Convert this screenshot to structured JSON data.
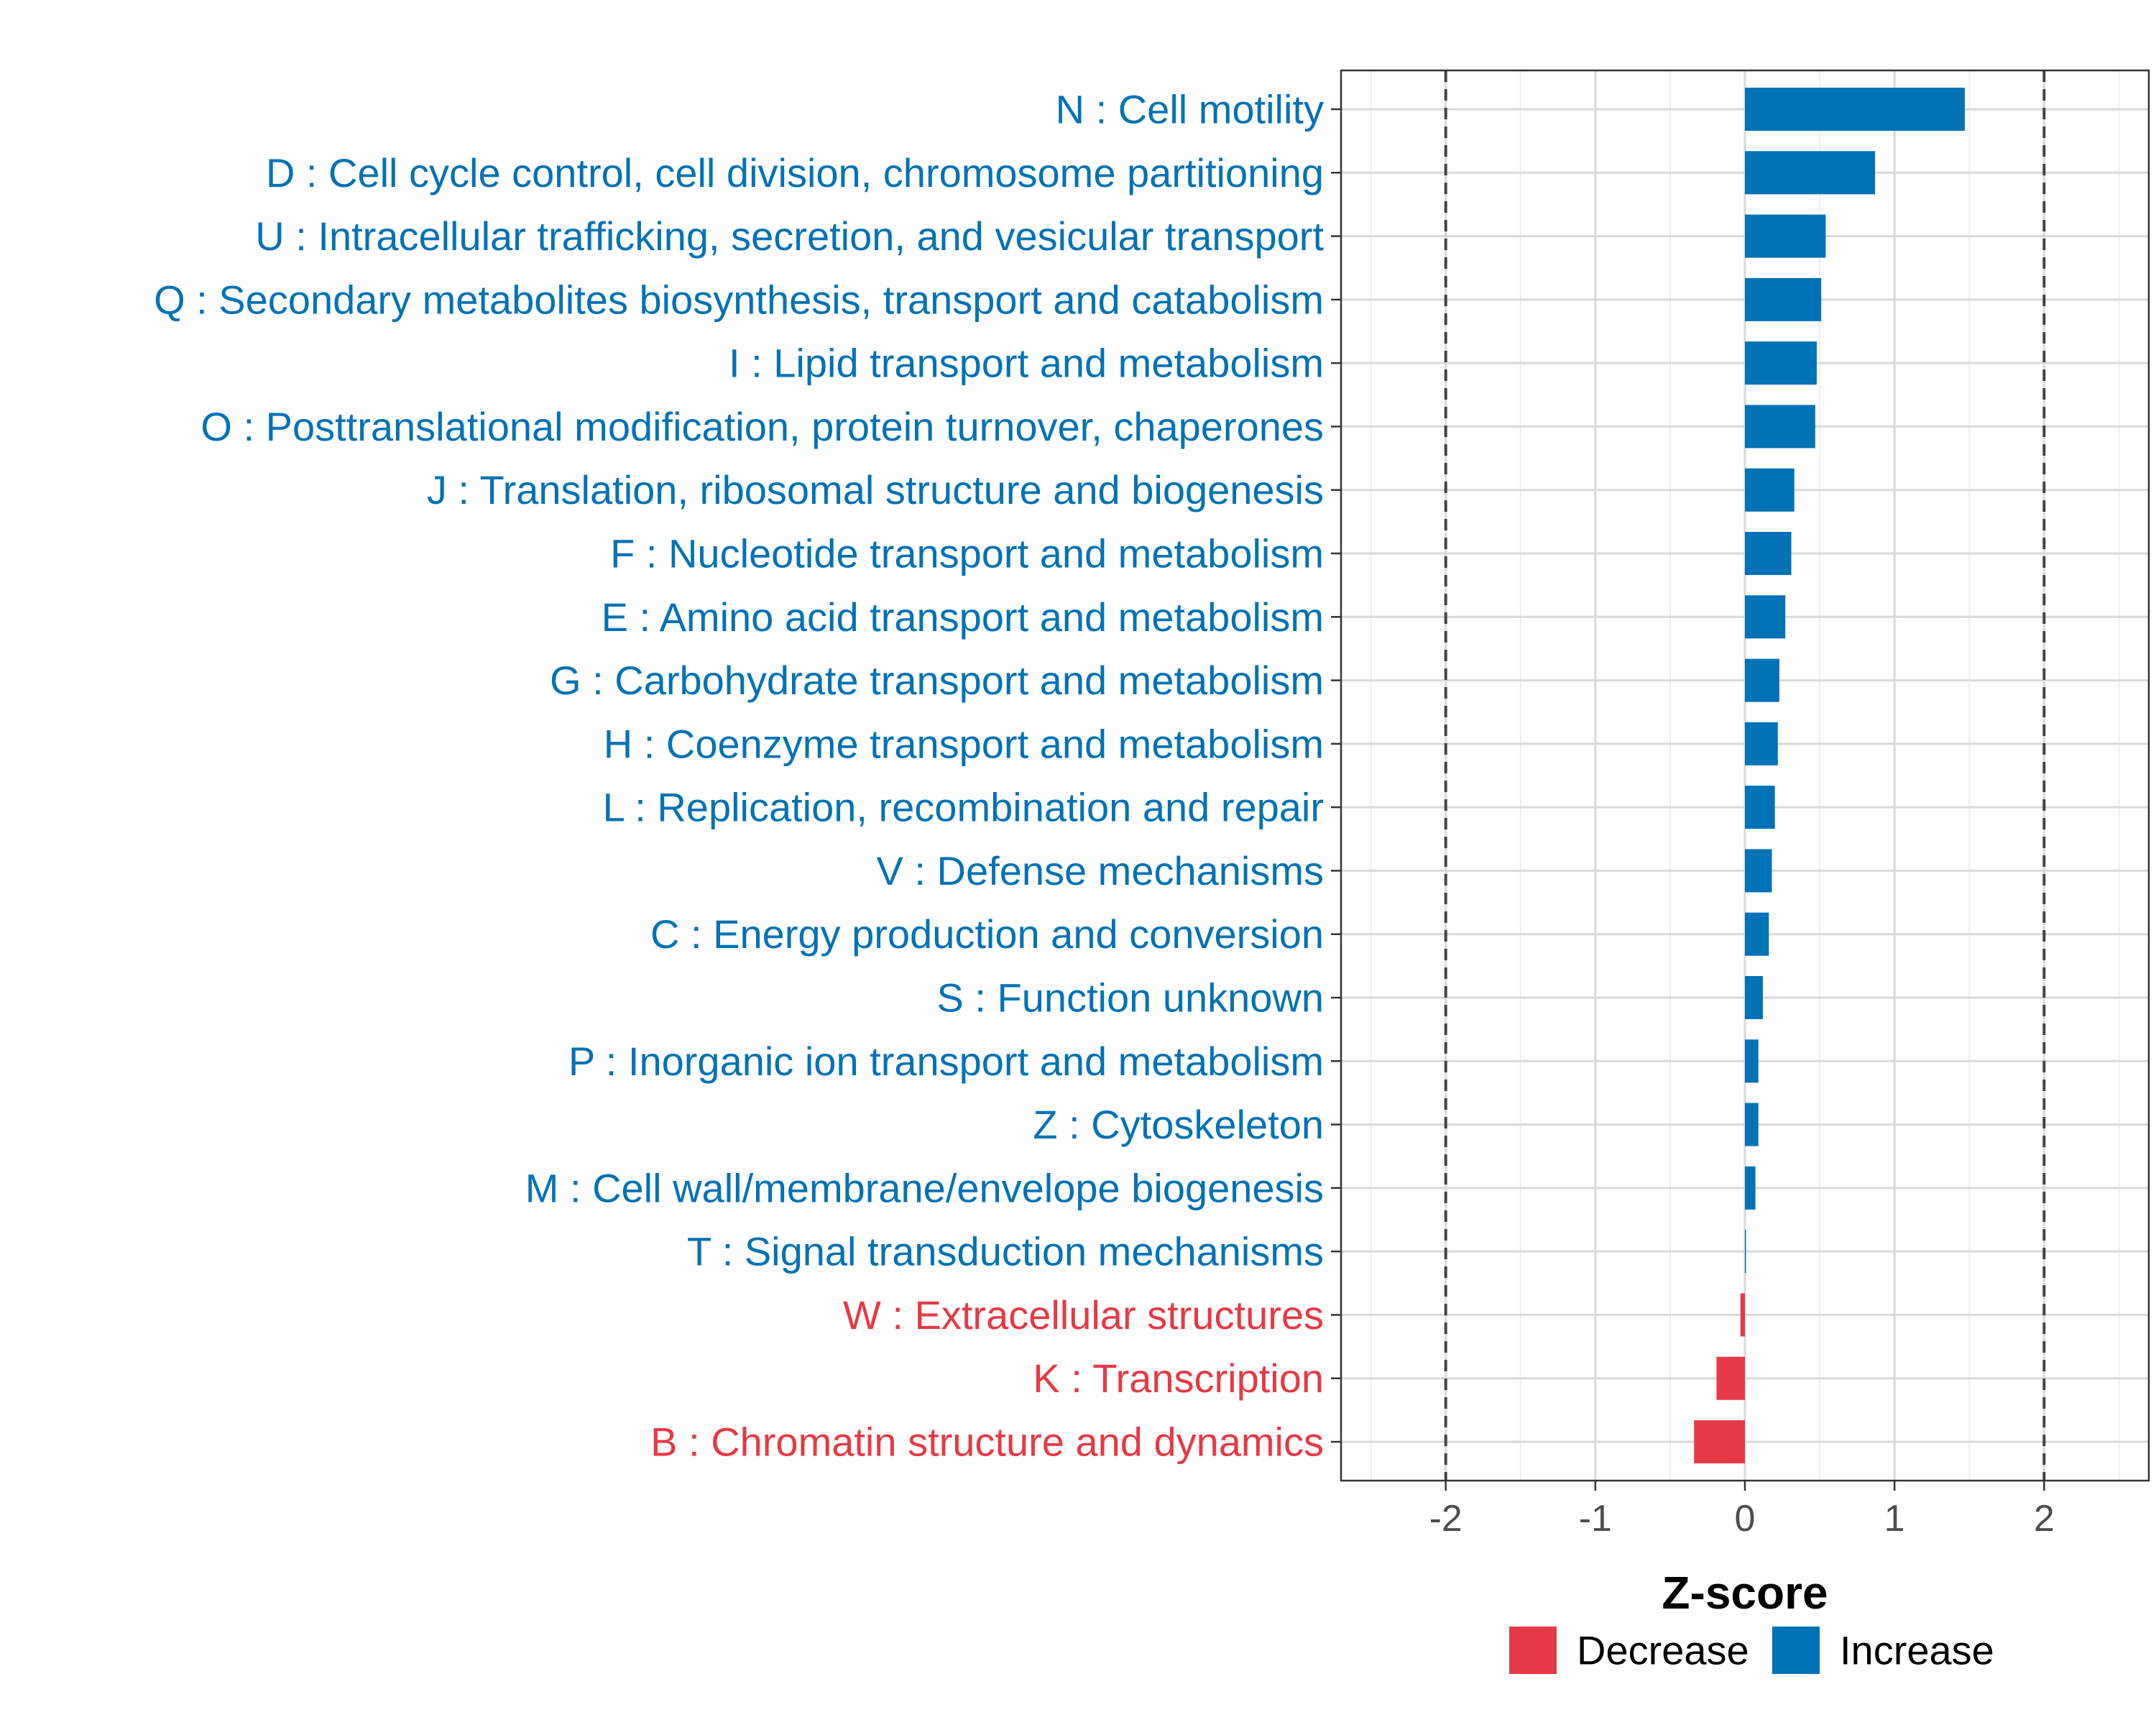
{
  "chart_data": {
    "type": "bar",
    "orientation": "horizontal",
    "title": "",
    "xlabel": "Z-score",
    "ylabel": "",
    "xlim": [
      -2.7,
      2.7
    ],
    "xticks": [
      -2,
      -1,
      0,
      1,
      2
    ],
    "xtick_labels": [
      "-2",
      "-1",
      "0",
      "1",
      "2"
    ],
    "reference_lines": [
      -2,
      2
    ],
    "grid": true,
    "colors": {
      "Increase": "#0072B5",
      "Decrease": "#E63946"
    },
    "categories": [
      "N : Cell motility",
      "D : Cell cycle control, cell division, chromosome partitioning",
      "U : Intracellular trafficking, secretion, and vesicular transport",
      "Q : Secondary metabolites biosynthesis, transport and catabolism",
      "I : Lipid transport and metabolism",
      "O : Posttranslational modification, protein turnover, chaperones",
      "J : Translation, ribosomal structure and biogenesis",
      "F : Nucleotide transport and metabolism",
      "E : Amino acid transport and metabolism",
      "G : Carbohydrate transport and metabolism",
      "H : Coenzyme transport and metabolism",
      "L : Replication, recombination and repair",
      "V : Defense mechanisms",
      "C : Energy production and conversion",
      "S : Function unknown",
      "P : Inorganic ion transport and metabolism",
      "Z : Cytoskeleton",
      "M : Cell wall/membrane/envelope biogenesis",
      "T : Signal transduction mechanisms",
      "W : Extracellular structures",
      "K : Transcription",
      "B : Chromatin structure and dynamics"
    ],
    "values": [
      1.47,
      0.87,
      0.54,
      0.51,
      0.48,
      0.47,
      0.33,
      0.31,
      0.27,
      0.23,
      0.22,
      0.2,
      0.18,
      0.16,
      0.12,
      0.09,
      0.09,
      0.07,
      0.005,
      -0.03,
      -0.19,
      -0.34
    ],
    "groups": [
      "Increase",
      "Increase",
      "Increase",
      "Increase",
      "Increase",
      "Increase",
      "Increase",
      "Increase",
      "Increase",
      "Increase",
      "Increase",
      "Increase",
      "Increase",
      "Increase",
      "Increase",
      "Increase",
      "Increase",
      "Increase",
      "Increase",
      "Decrease",
      "Decrease",
      "Decrease"
    ],
    "legend": {
      "position": "bottom",
      "entries": [
        {
          "name": "Decrease",
          "color": "#E63946"
        },
        {
          "name": "Increase",
          "color": "#0072B5"
        }
      ]
    }
  }
}
